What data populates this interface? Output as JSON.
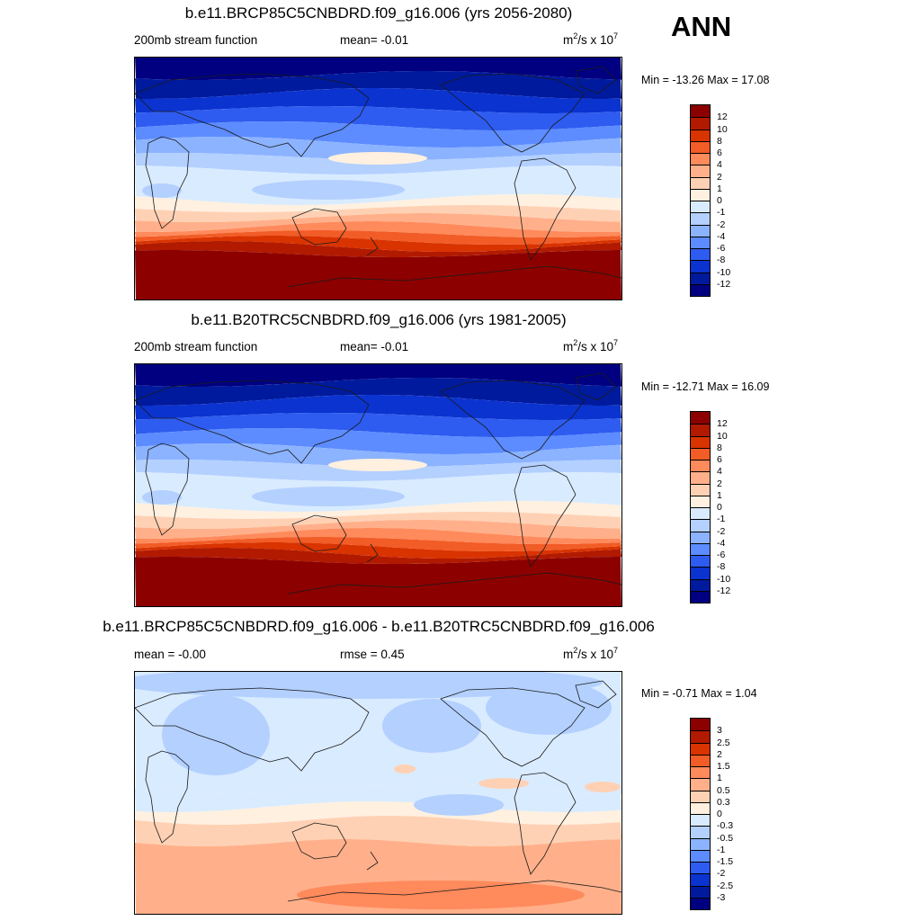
{
  "season": "ANN",
  "colors": {
    "scale_a": [
      "#8c0000",
      "#b21a00",
      "#d93300",
      "#f25c26",
      "#ff8a5c",
      "#ffb08a",
      "#ffd1b4",
      "#fff0e0",
      "#d9ebff",
      "#b3d0ff",
      "#8cb3ff",
      "#5c8cff",
      "#2e5cf0",
      "#0a33d0",
      "#001a9e",
      "#000080"
    ],
    "scale_b": [
      "#8c0000",
      "#b21a00",
      "#d93300",
      "#f25c26",
      "#ff8a5c",
      "#ffb08a",
      "#ffd1b4",
      "#fff0e0",
      "#d9ebff",
      "#b3d0ff",
      "#8cb3ff",
      "#5c8cff",
      "#2e5cf0",
      "#0a33d0",
      "#001a9e",
      "#000080"
    ]
  },
  "panels": [
    {
      "title": "b.e11.BRCP85C5CNBDRD.f09_g16.006 (yrs 2056-2080)",
      "left_label": "200mb stream function",
      "mid_label": "mean=  -0.01",
      "units_base": "m",
      "units_sup": "2",
      "units_mid": "/s x 10",
      "units_sup2": "7",
      "minmax": "Min = -13.26 Max =  17.08",
      "levels": [
        "12",
        "10",
        "8",
        "6",
        "4",
        "2",
        "1",
        "0",
        "-1",
        "-2",
        "-4",
        "-6",
        "-8",
        "-10",
        "-12"
      ],
      "field": "a"
    },
    {
      "title": "b.e11.B20TRC5CNBDRD.f09_g16.006 (yrs 1981-2005)",
      "left_label": "200mb stream function",
      "mid_label": "mean=  -0.01",
      "units_base": "m",
      "units_sup": "2",
      "units_mid": "/s x 10",
      "units_sup2": "7",
      "minmax": "Min = -12.71 Max =  16.09",
      "levels": [
        "12",
        "10",
        "8",
        "6",
        "4",
        "2",
        "1",
        "0",
        "-1",
        "-2",
        "-4",
        "-6",
        "-8",
        "-10",
        "-12"
      ],
      "field": "b"
    },
    {
      "title": "b.e11.BRCP85C5CNBDRD.f09_g16.006 - b.e11.B20TRC5CNBDRD.f09_g16.006",
      "left_label": "mean =  -0.00",
      "mid_label": "rmse =   0.45",
      "units_base": "m",
      "units_sup": "2",
      "units_mid": "/s x 10",
      "units_sup2": "7",
      "minmax": "Min =  -0.71 Max =   1.04",
      "levels": [
        "3",
        "2.5",
        "2",
        "1.5",
        "1",
        "0.5",
        "0.3",
        "0",
        "-0.3",
        "-0.5",
        "-1",
        "-1.5",
        "-2",
        "-2.5",
        "-3"
      ],
      "field": "diff"
    }
  ]
}
